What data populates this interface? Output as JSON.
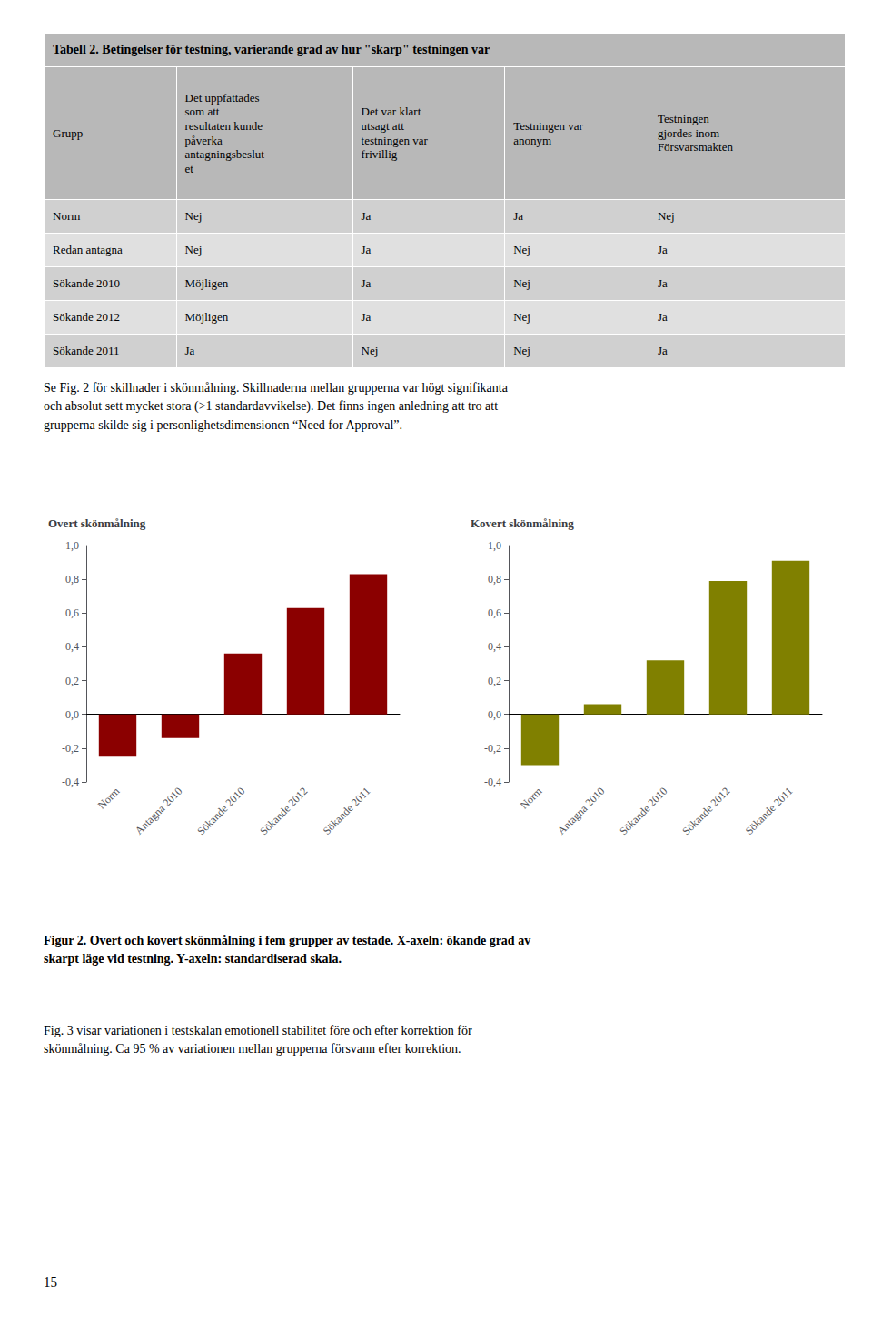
{
  "chart_data": [
    {
      "type": "bar",
      "title": "Overt skönmålning",
      "categories": [
        "Norm",
        "Antagna 2010",
        "Sökande 2010",
        "Sökande 2012",
        "Sökande 2011"
      ],
      "values": [
        -0.25,
        -0.14,
        0.36,
        0.63,
        0.83
      ],
      "color": "#8b0000",
      "ylim": [
        -0.4,
        1.0
      ],
      "yticks": [
        {
          "value": -0.4,
          "label": "-0,4"
        },
        {
          "value": -0.2,
          "label": "-0,2"
        },
        {
          "value": 0.0,
          "label": "0,0"
        },
        {
          "value": 0.2,
          "label": "0,2"
        },
        {
          "value": 0.4,
          "label": "0,4"
        },
        {
          "value": 0.6,
          "label": "0,6"
        },
        {
          "value": 0.8,
          "label": "0,8"
        },
        {
          "value": 1.0,
          "label": "1,0"
        }
      ],
      "grid": false
    },
    {
      "type": "bar",
      "title": "Kovert skönmålning",
      "categories": [
        "Norm",
        "Antagna 2010",
        "Sökande 2010",
        "Sökande 2012",
        "Sökande 2011"
      ],
      "values": [
        -0.3,
        0.06,
        0.32,
        0.79,
        0.91
      ],
      "color": "#808000",
      "ylim": [
        -0.4,
        1.0
      ],
      "yticks": [
        {
          "value": -0.4,
          "label": "-0,4"
        },
        {
          "value": -0.2,
          "label": "-0,2"
        },
        {
          "value": 0.0,
          "label": "0,0"
        },
        {
          "value": 0.2,
          "label": "0,2"
        },
        {
          "value": 0.4,
          "label": "0,4"
        },
        {
          "value": 0.6,
          "label": "0,6"
        },
        {
          "value": 0.8,
          "label": "0,8"
        },
        {
          "value": 1.0,
          "label": "1,0"
        }
      ],
      "grid": false
    }
  ],
  "table": {
    "title": "Tabell 2. Betingelser för testning, varierande grad av hur \"skarp\" testningen var",
    "headers": [
      "Grupp",
      "Det uppfattades\nsom att\nresultaten kunde\npåverka\nantagningsbeslut\net",
      "Det var klart\nutsagt att\ntestningen var\nfrivillig",
      "Testningen var\nanonym",
      "Testningen\ngjordes inom\nFörsvarsmakten"
    ],
    "rows": [
      [
        "Norm",
        "Nej",
        "Ja",
        "Ja",
        "Nej"
      ],
      [
        "Redan antagna",
        "Nej",
        "Ja",
        "Nej",
        "Ja"
      ],
      [
        "Sökande 2010",
        "Möjligen",
        "Ja",
        "Nej",
        "Ja"
      ],
      [
        "Sökande 2012",
        "Möjligen",
        "Ja",
        "Nej",
        "Ja"
      ],
      [
        "Sökande 2011",
        "Ja",
        "Nej",
        "Nej",
        "Ja"
      ]
    ]
  },
  "annotations": [
    "Se Fig. 2 för skillnader i skönmålning. Skillnaderna mellan grupperna var högt signifikanta\noch absolut sett mycket stora (>1 standardavvikelse). Det finns ingen anledning att tro att\ngrupperna skilde sig i personlighetsdimensionen “Need for Approval”.",
    "Figur 2. Overt och kovert skönmålning i fem grupper av testade. X-axeln: ökande grad av\nskarpt läge vid testning. Y-axeln: standardiserad skala.",
    "Fig. 3 visar variationen i testskalan emotionell stabilitet före och efter korrektion för\nskönmålning. Ca 95 % av variationen mellan grupperna försvann efter korrektion.",
    "15"
  ]
}
